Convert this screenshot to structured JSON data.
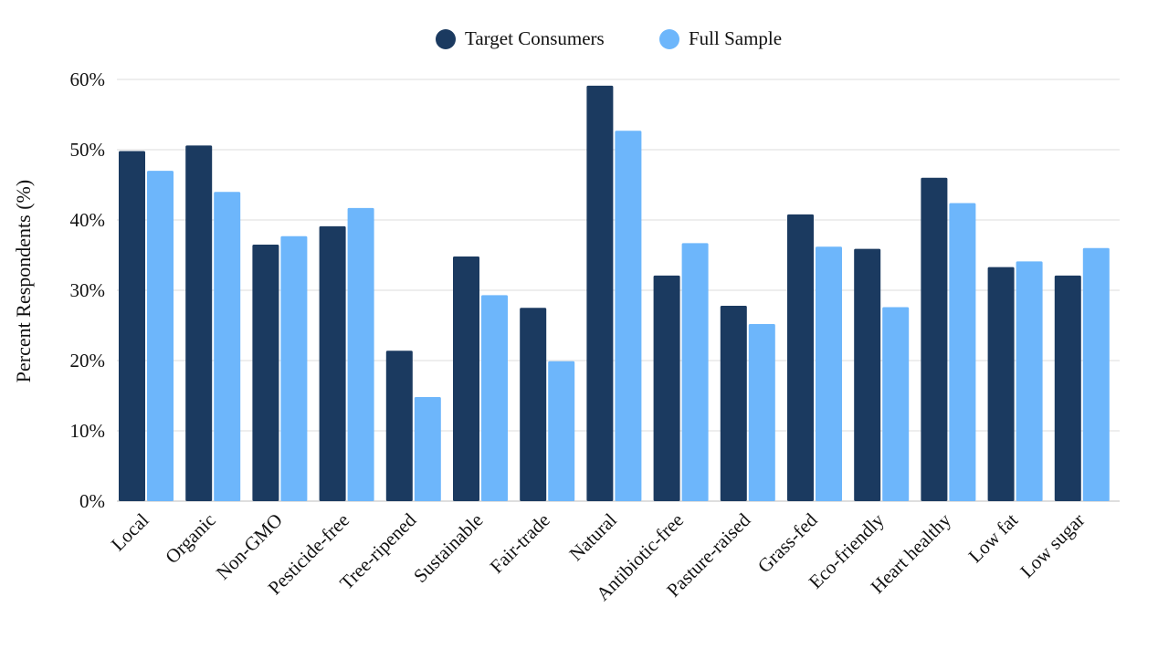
{
  "colors": {
    "target": "#1b3a60",
    "full": "#6db6fb",
    "grid": "#dcdcdc",
    "text": "#111111"
  },
  "chart_data": {
    "type": "bar",
    "categories": [
      "Local",
      "Organic",
      "Non-GMO",
      "Pesticide-free",
      "Tree-ripened",
      "Sustainable",
      "Fair-trade",
      "Natural",
      "Antibiotic-free",
      "Pasture-raised",
      "Grass-fed",
      "Eco-friendly",
      "Heart healthy",
      "Low fat",
      "Low sugar"
    ],
    "series": [
      {
        "name": "Target Consumers",
        "values": [
          49.8,
          50.6,
          36.5,
          39.1,
          21.4,
          34.8,
          27.5,
          59.1,
          32.1,
          27.8,
          40.8,
          35.9,
          46.0,
          33.3,
          32.1
        ]
      },
      {
        "name": "Full Sample",
        "values": [
          47.0,
          44.0,
          37.7,
          41.7,
          14.8,
          29.3,
          19.9,
          52.7,
          36.7,
          25.2,
          36.2,
          27.6,
          42.4,
          34.1,
          36.0
        ]
      }
    ],
    "ylabel": "Percent Respondents (%)",
    "ylim": [
      0,
      60
    ],
    "yticks": [
      "0%",
      "10%",
      "20%",
      "30%",
      "40%",
      "50%",
      "60%"
    ],
    "grid": true,
    "legend_position": "top-center"
  }
}
